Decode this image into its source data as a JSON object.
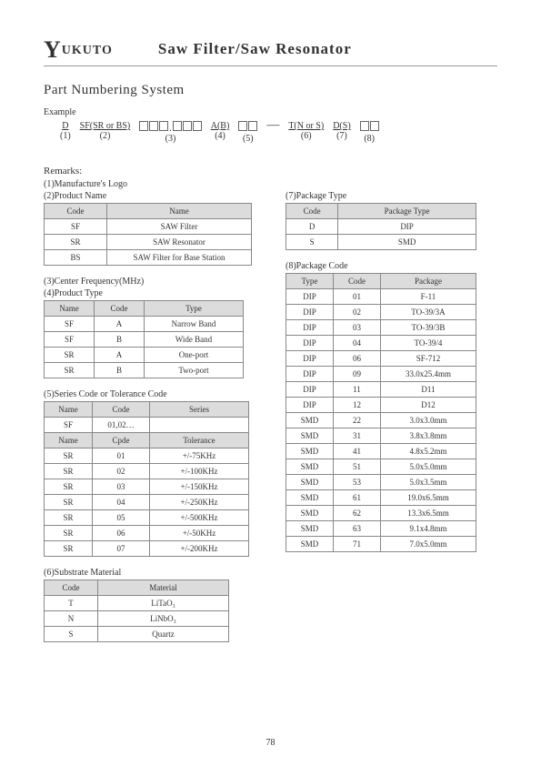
{
  "header": {
    "logo_rest": "UKUTO",
    "title": "Saw Filter/Saw Resonator"
  },
  "pns": {
    "heading": "Part Numbering System",
    "example_label": "Example",
    "parts": [
      {
        "top": "D",
        "bottom": "(1)",
        "underline": true
      },
      {
        "top": "SF(SR or BS)",
        "bottom": "(2)",
        "underline": true
      },
      {
        "boxes": [
          3,
          3
        ],
        "dot": true,
        "bottom": "(3)"
      },
      {
        "top": "A(B)",
        "bottom": "(4)",
        "underline": true
      },
      {
        "boxes": [
          2
        ],
        "bottom": "(5)"
      },
      {
        "dash": true
      },
      {
        "top": "T(N or S)",
        "bottom": "(6)",
        "underline": true
      },
      {
        "top": "D(S)",
        "bottom": "(7)",
        "underline": true
      },
      {
        "boxes": [
          2
        ],
        "bottom": "(8)"
      }
    ]
  },
  "remarks_label": "Remarks:",
  "remark1": "(1)Manufacture's Logo",
  "remark2": "(2)Product Name",
  "t2": {
    "headers": [
      "Code",
      "Name"
    ],
    "rows": [
      [
        "SF",
        "SAW Filter"
      ],
      [
        "SR",
        "SAW Resonator"
      ],
      [
        "BS",
        "SAW Filter for Base Station"
      ]
    ]
  },
  "remark3": "(3)Center Frequency(MHz)",
  "remark4": "(4)Product Type",
  "t4": {
    "headers": [
      "Name",
      "Code",
      "Type"
    ],
    "rows": [
      [
        "SF",
        "A",
        "Narrow Band"
      ],
      [
        "SF",
        "B",
        "Wide Band"
      ],
      [
        "SR",
        "A",
        "One-port"
      ],
      [
        "SR",
        "B",
        "Two-port"
      ]
    ]
  },
  "remark5": "(5)Series Code or Tolerance Code",
  "t5a": {
    "headers": [
      "Name",
      "Code",
      "Series"
    ],
    "rows": [
      [
        "SF",
        "01,02…",
        ""
      ]
    ]
  },
  "t5b": {
    "headers": [
      "Name",
      "Cpde",
      "Tolerance"
    ],
    "rows": [
      [
        "SR",
        "01",
        "+/-75KHz"
      ],
      [
        "SR",
        "02",
        "+/-100KHz"
      ],
      [
        "SR",
        "03",
        "+/-150KHz"
      ],
      [
        "SR",
        "04",
        "+/-250KHz"
      ],
      [
        "SR",
        "05",
        "+/-500KHz"
      ],
      [
        "SR",
        "06",
        "+/-50KHz"
      ],
      [
        "SR",
        "07",
        "+/-200KHz"
      ]
    ]
  },
  "remark6": "(6)Substrate Material",
  "t6": {
    "headers": [
      "Code",
      "Material"
    ],
    "rows": [
      [
        "T",
        "LiTaO₃"
      ],
      [
        "N",
        "LiNbO₃"
      ],
      [
        "S",
        "Quartz"
      ]
    ]
  },
  "remark7": "(7)Package Type",
  "t7": {
    "headers": [
      "Code",
      "Package Type"
    ],
    "rows": [
      [
        "D",
        "DIP"
      ],
      [
        "S",
        "SMD"
      ]
    ]
  },
  "remark8": "(8)Package Code",
  "t8": {
    "headers": [
      "Type",
      "Code",
      "Package"
    ],
    "rows": [
      [
        "DIP",
        "01",
        "F-11"
      ],
      [
        "DIP",
        "02",
        "TO-39/3A"
      ],
      [
        "DIP",
        "03",
        "TO-39/3B"
      ],
      [
        "DIP",
        "04",
        "TO-39/4"
      ],
      [
        "DIP",
        "06",
        "SF-712"
      ],
      [
        "DIP",
        "09",
        "33.0x25.4mm"
      ],
      [
        "DIP",
        "11",
        "D11"
      ],
      [
        "DIP",
        "12",
        "D12"
      ],
      [
        "SMD",
        "22",
        "3.0x3.0mm"
      ],
      [
        "SMD",
        "31",
        "3.8x3.8mm"
      ],
      [
        "SMD",
        "41",
        "4.8x5.2mm"
      ],
      [
        "SMD",
        "51",
        "5.0x5.0mm"
      ],
      [
        "SMD",
        "53",
        "5.0x3.5mm"
      ],
      [
        "SMD",
        "61",
        "19.0x6.5mm"
      ],
      [
        "SMD",
        "62",
        "13.3x6.5mm"
      ],
      [
        "SMD",
        "63",
        "9.1x4.8mm"
      ],
      [
        "SMD",
        "71",
        "7.0x5.0mm"
      ]
    ]
  },
  "page_number": "78"
}
